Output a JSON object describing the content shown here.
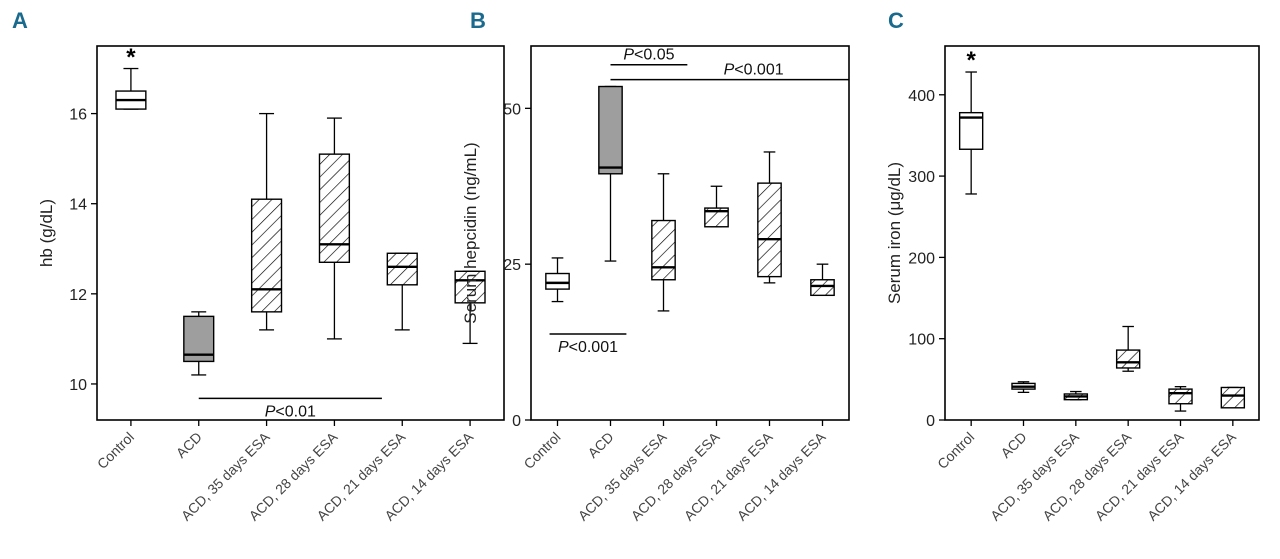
{
  "colors": {
    "panel_label": "#1a6a8e",
    "line": "#000000",
    "gray_fill": "#9e9e9e"
  },
  "chart_data": [
    {
      "panel_label": "A",
      "type": "boxplot",
      "ylabel": "hb (g/dL)",
      "ylim": [
        9.2,
        17.5
      ],
      "yticks": [
        "10",
        "12",
        "14",
        "16"
      ],
      "categories": [
        "Control",
        "ACD",
        "ACD, 35 days ESA",
        "ACD, 28 days ESA",
        "ACD, 21 days ESA",
        "ACD, 14 days ESA"
      ],
      "boxes": [
        {
          "fill": "white",
          "min": 16.1,
          "q1": 16.1,
          "median": 16.3,
          "q3": 16.5,
          "max": 17.0
        },
        {
          "fill": "gray",
          "min": 10.2,
          "q1": 10.5,
          "median": 10.65,
          "q3": 11.5,
          "max": 11.6
        },
        {
          "fill": "hatch",
          "min": 11.2,
          "q1": 11.6,
          "median": 12.1,
          "q3": 14.1,
          "max": 16.0
        },
        {
          "fill": "hatch",
          "min": 11.0,
          "q1": 12.7,
          "median": 13.1,
          "q3": 15.1,
          "max": 15.9
        },
        {
          "fill": "hatch",
          "min": 11.2,
          "q1": 12.2,
          "median": 12.6,
          "q3": 12.9,
          "max": 12.9
        },
        {
          "fill": "hatch",
          "min": 10.9,
          "q1": 11.8,
          "median": 12.3,
          "q3": 12.5,
          "max": 12.5
        }
      ],
      "annotations": [
        {
          "text": "*",
          "category": 0,
          "y": 17.35,
          "kind": "star"
        },
        {
          "text": "P<0.01",
          "from": 1,
          "to": 3.7,
          "y": 9.68,
          "text_side": "below",
          "kind": "bracket"
        }
      ]
    },
    {
      "panel_label": "B",
      "type": "boxplot",
      "ylabel": "Serum hepcidin (ng/mL)",
      "ylim": [
        0,
        60
      ],
      "yticks": [
        "0",
        "25",
        "50"
      ],
      "categories": [
        "Control",
        "ACD",
        "ACD, 35 days ESA",
        "ACD, 28 days ESA",
        "ACD, 21 days ESA",
        "ACD, 14 days ESA"
      ],
      "boxes": [
        {
          "fill": "white",
          "min": 19.0,
          "q1": 21.0,
          "median": 22.0,
          "q3": 23.5,
          "max": 26.0
        },
        {
          "fill": "gray",
          "min": 25.5,
          "q1": 39.5,
          "median": 40.5,
          "q3": 53.5,
          "max": 53.5
        },
        {
          "fill": "hatch",
          "min": 17.5,
          "q1": 22.5,
          "median": 24.5,
          "q3": 32.0,
          "max": 39.5
        },
        {
          "fill": "hatch",
          "min": 31.0,
          "q1": 31.0,
          "median": 33.5,
          "q3": 34.0,
          "max": 37.5
        },
        {
          "fill": "hatch",
          "min": 22.0,
          "q1": 23.0,
          "median": 29.0,
          "q3": 38.0,
          "max": 43.0
        },
        {
          "fill": "hatch",
          "min": 20.0,
          "q1": 20.0,
          "median": 21.5,
          "q3": 22.5,
          "max": 25.0
        }
      ],
      "annotations": [
        {
          "text": "P<0.05",
          "from": 1,
          "to": 2.45,
          "y": 57.0,
          "text_side": "above",
          "kind": "bracket"
        },
        {
          "text": "P<0.001",
          "from": 1,
          "to": 5.5,
          "y": 54.6,
          "text_side": "above-right",
          "kind": "bracket"
        },
        {
          "text": "P<0.001",
          "from": -0.15,
          "to": 1.3,
          "y": 13.8,
          "text_side": "below",
          "kind": "bracket"
        }
      ]
    },
    {
      "panel_label": "C",
      "type": "boxplot",
      "ylabel": "Serum iron (μg/dL)",
      "ylim": [
        0,
        460
      ],
      "yticks": [
        "0",
        "100",
        "200",
        "300",
        "400"
      ],
      "categories": [
        "Control",
        "ACD",
        "ACD, 35 days ESA",
        "ACD, 28 days ESA",
        "ACD, 21 days ESA",
        "ACD, 14 days ESA"
      ],
      "boxes": [
        {
          "fill": "white",
          "min": 278,
          "q1": 333,
          "median": 372,
          "q3": 378,
          "max": 428
        },
        {
          "fill": "white",
          "min": 34,
          "q1": 38,
          "median": 41,
          "q3": 45,
          "max": 47
        },
        {
          "fill": "hatch",
          "min": 25,
          "q1": 25,
          "median": 29,
          "q3": 32,
          "max": 35
        },
        {
          "fill": "hatch",
          "min": 60,
          "q1": 64,
          "median": 71,
          "q3": 86,
          "max": 115
        },
        {
          "fill": "hatch",
          "min": 11,
          "q1": 20,
          "median": 33,
          "q3": 38,
          "max": 41
        },
        {
          "fill": "hatch",
          "min": 15,
          "q1": 15,
          "median": 30,
          "q3": 40,
          "max": 40
        }
      ],
      "annotations": [
        {
          "text": "*",
          "category": 0,
          "y": 448,
          "kind": "star"
        }
      ]
    }
  ]
}
